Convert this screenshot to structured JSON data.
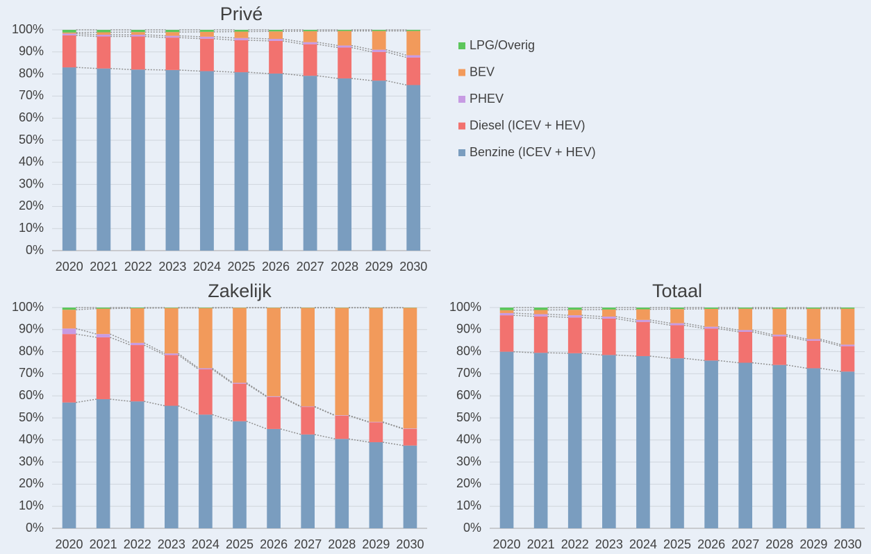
{
  "chart_data": [
    {
      "type": "bar",
      "stacked": true,
      "title": "Privé",
      "legend": "right",
      "grid": true,
      "categories": [
        "2020",
        "2021",
        "2022",
        "2023",
        "2024",
        "2025",
        "2026",
        "2027",
        "2028",
        "2029",
        "2030"
      ],
      "ylim": [
        0,
        100
      ],
      "yticks": [
        {
          "value": 0,
          "label": "0%"
        },
        {
          "value": 10,
          "label": "10%"
        },
        {
          "value": 20,
          "label": "20%"
        },
        {
          "value": 30,
          "label": "30%"
        },
        {
          "value": 40,
          "label": "40%"
        },
        {
          "value": 50,
          "label": "50%"
        },
        {
          "value": 60,
          "label": "60%"
        },
        {
          "value": 70,
          "label": "70%"
        },
        {
          "value": 80,
          "label": "80%"
        },
        {
          "value": 90,
          "label": "90%"
        },
        {
          "value": 100,
          "label": "100%"
        }
      ],
      "series": [
        {
          "name": "Benzine (ICEV + HEV)",
          "color": "#7a9dbf",
          "values": [
            83,
            82.5,
            82,
            81.8,
            81.3,
            80.8,
            80.2,
            79.2,
            78,
            77,
            75
          ]
        },
        {
          "name": "Diesel (ICEV + HEV)",
          "color": "#f2726f",
          "values": [
            14.5,
            14.5,
            15,
            14.7,
            14.7,
            14.5,
            14.8,
            14.3,
            14,
            13,
            12.5
          ]
        },
        {
          "name": "PHEV",
          "color": "#c79be3",
          "values": [
            0.8,
            0.8,
            0.8,
            0.8,
            0.9,
            1,
            0.9,
            0.9,
            0.9,
            1,
            1
          ]
        },
        {
          "name": "BEV",
          "color": "#f29a5b",
          "values": [
            0.5,
            1.1,
            1.2,
            1.7,
            2.2,
            2.9,
            3.4,
            5.0,
            6.6,
            8.5,
            11.0
          ]
        },
        {
          "name": "LPG/Overig",
          "color": "#5cc65c",
          "values": [
            1.2,
            1.1,
            1.0,
            1.0,
            0.9,
            0.8,
            0.7,
            0.6,
            0.5,
            0.5,
            0.5
          ]
        }
      ]
    },
    {
      "type": "bar",
      "stacked": true,
      "title": "Zakelijk",
      "grid": true,
      "categories": [
        "2020",
        "2021",
        "2022",
        "2023",
        "2024",
        "2025",
        "2026",
        "2027",
        "2028",
        "2029",
        "2030"
      ],
      "ylim": [
        0,
        100
      ],
      "yticks": [
        {
          "value": 0,
          "label": "0%"
        },
        {
          "value": 10,
          "label": "10%"
        },
        {
          "value": 20,
          "label": "20%"
        },
        {
          "value": 30,
          "label": "30%"
        },
        {
          "value": 40,
          "label": "40%"
        },
        {
          "value": 50,
          "label": "50%"
        },
        {
          "value": 60,
          "label": "60%"
        },
        {
          "value": 70,
          "label": "70%"
        },
        {
          "value": 80,
          "label": "80%"
        },
        {
          "value": 90,
          "label": "90%"
        },
        {
          "value": 100,
          "label": "100%"
        }
      ],
      "series": [
        {
          "color": "#7a9dbf",
          "values": [
            57,
            58.5,
            57.5,
            55.5,
            51.5,
            48.5,
            45,
            42.5,
            40.5,
            39,
            37.5
          ]
        },
        {
          "color": "#f2726f",
          "values": [
            31,
            28,
            25.5,
            23,
            20.5,
            17,
            14.5,
            12.5,
            10.5,
            9,
            7.5
          ]
        },
        {
          "color": "#c79be3",
          "values": [
            2.5,
            1.5,
            1,
            0.7,
            0.5,
            0.4,
            0.3,
            0.2,
            0.2,
            0.2,
            0.2
          ]
        },
        {
          "color": "#f29a5b",
          "values": [
            8.5,
            11.5,
            15.7,
            20.6,
            27.3,
            34,
            40.1,
            44.7,
            48.7,
            51.7,
            54.7
          ]
        },
        {
          "color": "#5cc65c",
          "values": [
            1,
            0.5,
            0.3,
            0.2,
            0.2,
            0.1,
            0.1,
            0.1,
            0.1,
            0.1,
            0.1
          ]
        }
      ]
    },
    {
      "type": "bar",
      "stacked": true,
      "title": "Totaal",
      "grid": true,
      "categories": [
        "2020",
        "2021",
        "2022",
        "2023",
        "2024",
        "2025",
        "2026",
        "2027",
        "2028",
        "2029",
        "2030"
      ],
      "ylim": [
        0,
        100
      ],
      "yticks": [
        {
          "value": 0,
          "label": "0%"
        },
        {
          "value": 10,
          "label": "10%"
        },
        {
          "value": 20,
          "label": "20%"
        },
        {
          "value": 30,
          "label": "30%"
        },
        {
          "value": 40,
          "label": "40%"
        },
        {
          "value": 50,
          "label": "50%"
        },
        {
          "value": 60,
          "label": "60%"
        },
        {
          "value": 70,
          "label": "70%"
        },
        {
          "value": 80,
          "label": "80%"
        },
        {
          "value": 90,
          "label": "90%"
        },
        {
          "value": 100,
          "label": "100%"
        }
      ],
      "series": [
        {
          "color": "#7a9dbf",
          "values": [
            80,
            79.5,
            79.3,
            78.5,
            78,
            77,
            76,
            75,
            74,
            72.5,
            71
          ]
        },
        {
          "color": "#f2726f",
          "values": [
            16.5,
            16.5,
            16.2,
            16.5,
            15.5,
            15,
            14.5,
            14,
            13,
            12.5,
            11.5
          ]
        },
        {
          "color": "#c79be3",
          "values": [
            1,
            1,
            1,
            0.9,
            0.9,
            0.9,
            0.8,
            0.8,
            0.7,
            0.7,
            0.7
          ]
        },
        {
          "color": "#f29a5b",
          "values": [
            1.3,
            1.9,
            2.5,
            3.2,
            4.8,
            6.4,
            8.1,
            9.7,
            11.8,
            13.8,
            16.3
          ]
        },
        {
          "color": "#5cc65c",
          "values": [
            1.2,
            1.1,
            1,
            0.9,
            0.8,
            0.7,
            0.6,
            0.5,
            0.5,
            0.5,
            0.5
          ]
        }
      ]
    }
  ]
}
